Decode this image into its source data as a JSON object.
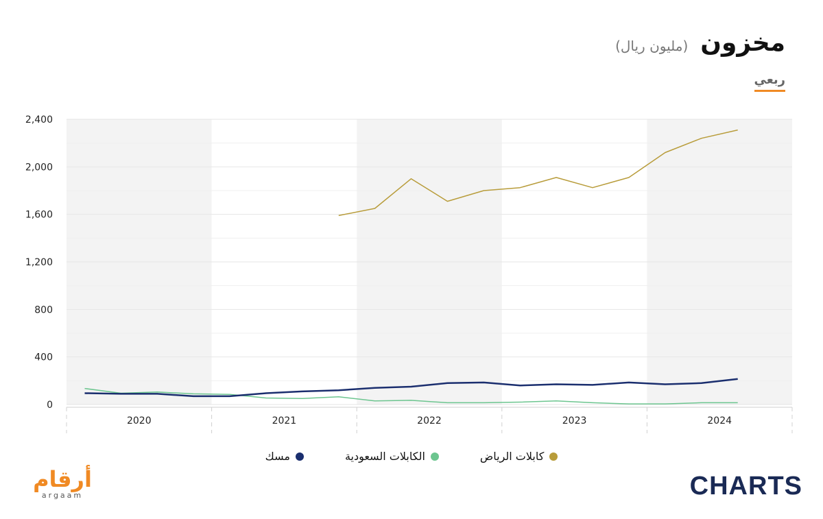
{
  "header": {
    "title": "مخزون",
    "unit": "(مليون ريال)"
  },
  "period_tab": "ربعي",
  "legend": {
    "riyadh": "كابلات الرياض",
    "saudi": "الكابلات السعودية",
    "mesk": "مسك"
  },
  "logos": {
    "argaam": "أرقام",
    "argaam_latin": "argaam",
    "charts": "CHARTS"
  },
  "colors": {
    "riyadh": "#b89c3a",
    "saudi": "#6cc58f",
    "mesk": "#1a2e6e",
    "accent": "#f08a24",
    "band": "#f3f3f3"
  },
  "chart_data": {
    "type": "line",
    "title": "مخزون",
    "xlabel": "",
    "ylabel": "",
    "ylim": [
      0,
      2400
    ],
    "yticks": [
      0,
      400,
      800,
      1200,
      1600,
      2000,
      2400
    ],
    "ytick_labels": [
      "0",
      "400",
      "800",
      "1,200",
      "1,600",
      "2,000",
      "2,400"
    ],
    "years": [
      "2020",
      "2021",
      "2022",
      "2023",
      "2024"
    ],
    "x": [
      "2020Q1",
      "2020Q2",
      "2020Q3",
      "2020Q4",
      "2021Q1",
      "2021Q2",
      "2021Q3",
      "2021Q4",
      "2022Q1",
      "2022Q2",
      "2022Q3",
      "2022Q4",
      "2023Q1",
      "2023Q2",
      "2023Q3",
      "2023Q4",
      "2024Q1",
      "2024Q2",
      "2024Q3"
    ],
    "grid": true,
    "legend": "bottom",
    "series": [
      {
        "name": "كابلات الرياض",
        "key": "riyadh",
        "values": [
          null,
          null,
          null,
          null,
          null,
          null,
          null,
          1590,
          1650,
          1900,
          1710,
          1800,
          1825,
          1910,
          1825,
          1910,
          2120,
          2240,
          2310
        ]
      },
      {
        "name": "الكابلات السعودية",
        "key": "saudi",
        "values": [
          135,
          95,
          105,
          90,
          85,
          55,
          50,
          65,
          30,
          35,
          15,
          15,
          20,
          30,
          15,
          5,
          5,
          15,
          15
        ]
      },
      {
        "name": "مسك",
        "key": "mesk",
        "values": [
          95,
          90,
          90,
          70,
          70,
          95,
          110,
          120,
          140,
          150,
          180,
          185,
          160,
          170,
          165,
          185,
          170,
          180,
          215
        ]
      }
    ]
  }
}
